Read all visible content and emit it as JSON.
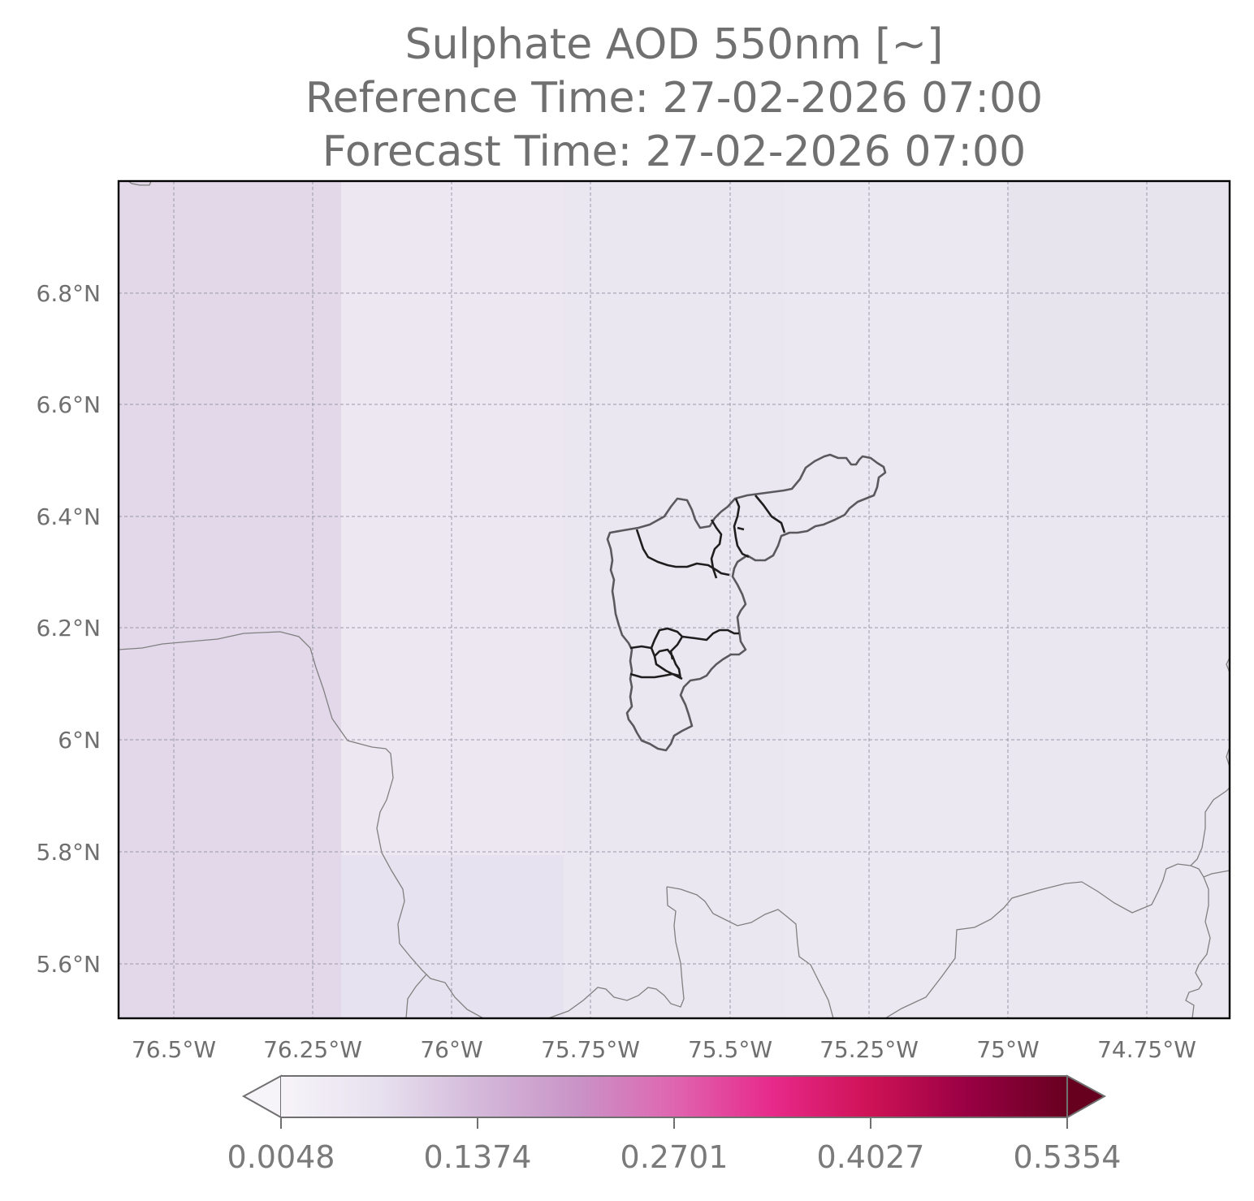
{
  "title": {
    "line1": "Sulphate AOD 550nm [~]",
    "line2": "Reference Time: 27-02-2026 07:00",
    "line3": "Forecast Time: 27-02-2026 07:00"
  },
  "axes": {
    "lat_labels": [
      "6.8°N",
      "6.6°N",
      "6.4°N",
      "6.2°N",
      "6°N",
      "5.8°N",
      "5.6°N"
    ],
    "lon_labels": [
      "76.5°W",
      "76.25°W",
      "76°W",
      "75.75°W",
      "75.5°W",
      "75.25°W",
      "75°W",
      "74.75°W"
    ]
  },
  "colorbar": {
    "ticks": [
      "0.0048",
      "0.1374",
      "0.2701",
      "0.4027",
      "0.5354"
    ],
    "colors": [
      "#f7f4f9",
      "#e7e1ef",
      "#d4b9da",
      "#c994c7",
      "#df65b0",
      "#e7298a",
      "#ce1256",
      "#980043",
      "#67001f"
    ]
  },
  "colors": {
    "field_high": "#e3d8e8",
    "field_mid": "#ece8f2",
    "field_low": "#e6e1ee",
    "region_outline": "#555555",
    "border_line": "#808080",
    "grid": "#9a9aa8"
  }
}
